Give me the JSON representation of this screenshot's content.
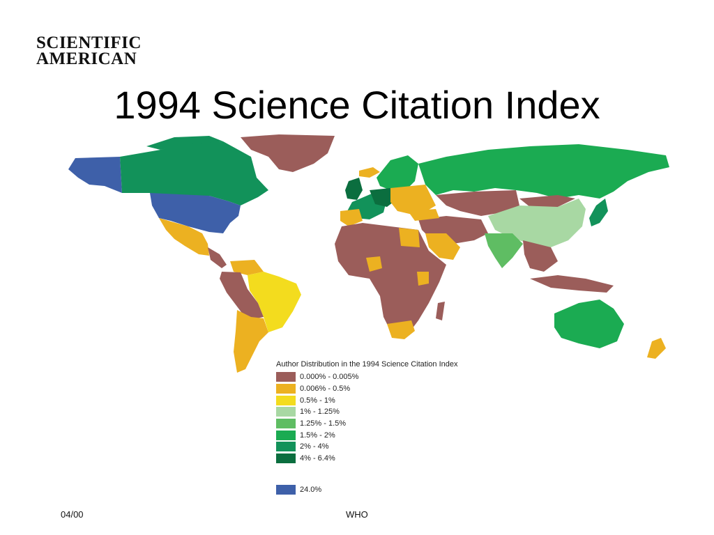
{
  "logo": {
    "line1": "SCIENTIFIC",
    "line2": "AMERICAN"
  },
  "title": "1994 Science Citation Index",
  "legend": {
    "title": "Author Distribution in the 1994 Science Citation Index",
    "items": [
      {
        "label": "0.000% - 0.005%",
        "color": "#9b5d5a"
      },
      {
        "label": "0.006% - 0.5%",
        "color": "#ecb121"
      },
      {
        "label": "0.5% - 1%",
        "color": "#f3dc1e"
      },
      {
        "label": "1% - 1.25%",
        "color": "#a8d8a3"
      },
      {
        "label": "1.25% - 1.5%",
        "color": "#5fbd63"
      },
      {
        "label": "1.5% - 2%",
        "color": "#1bab52"
      },
      {
        "label": "2% - 4%",
        "color": "#12925a"
      },
      {
        "label": "4% - 6.4%",
        "color": "#0b6e3f"
      }
    ],
    "extra": {
      "label": "24.0%",
      "color": "#3e60a9"
    }
  },
  "map": {
    "regions": [
      {
        "name": "United States",
        "category": "24.0%"
      },
      {
        "name": "Alaska",
        "category": "24.0%"
      },
      {
        "name": "Canada",
        "category": "2% - 4%"
      },
      {
        "name": "Greenland",
        "category": "0.000% - 0.005%"
      },
      {
        "name": "Mexico",
        "category": "0.006% - 0.5%"
      },
      {
        "name": "Brazil",
        "category": "0.5% - 1%"
      },
      {
        "name": "Argentina",
        "category": "0.006% - 0.5%"
      },
      {
        "name": "Russia",
        "category": "1.5% - 2%"
      },
      {
        "name": "China",
        "category": "1% - 1.25%"
      },
      {
        "name": "India",
        "category": "1.25% - 1.5%"
      },
      {
        "name": "Japan",
        "category": "2% - 4%"
      },
      {
        "name": "Australia",
        "category": "1.5% - 2%"
      },
      {
        "name": "South Africa",
        "category": "0.006% - 0.5%"
      },
      {
        "name": "United Kingdom",
        "category": "4% - 6.4%"
      },
      {
        "name": "Germany",
        "category": "4% - 6.4%"
      },
      {
        "name": "France",
        "category": "2% - 4%"
      }
    ]
  },
  "footer": {
    "date": "04/00",
    "source": "WHO"
  }
}
